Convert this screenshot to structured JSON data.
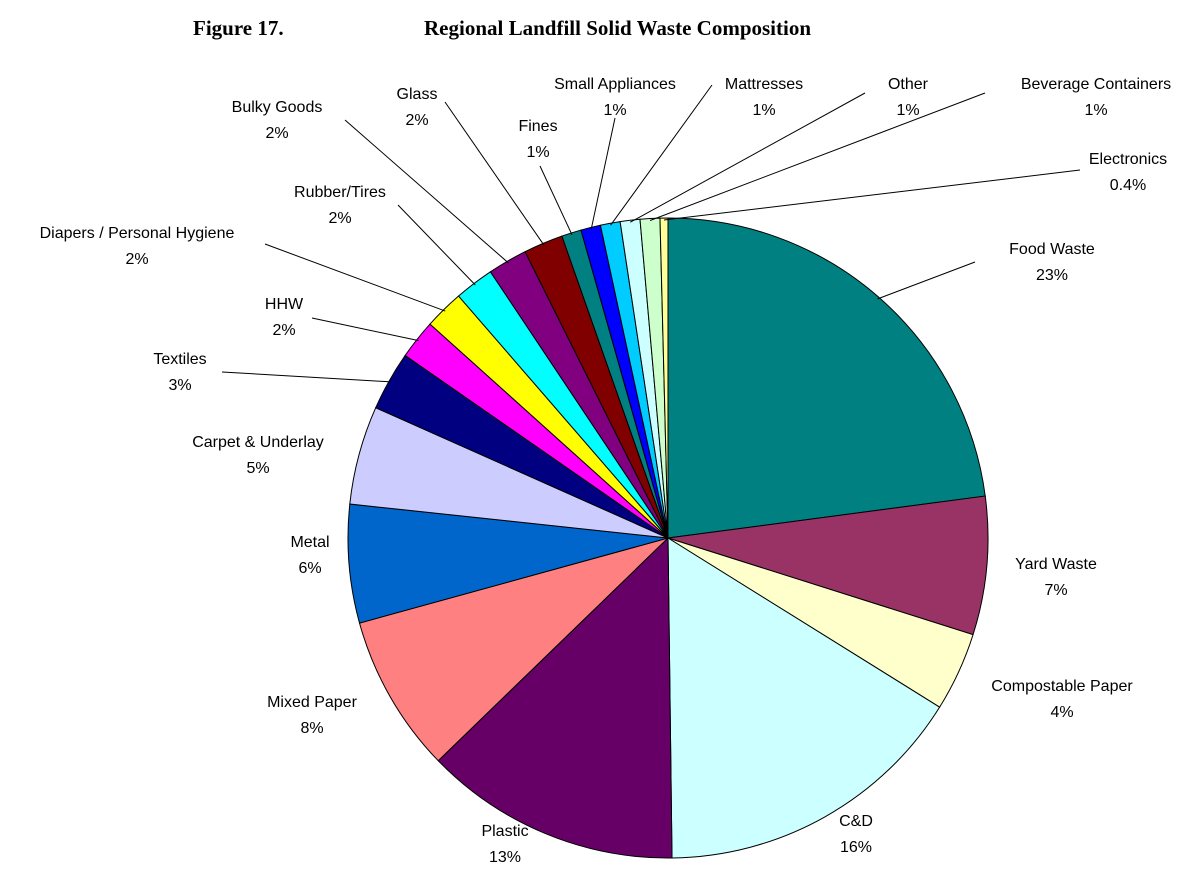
{
  "chart_data": {
    "type": "pie",
    "figure_label": "Figure 17.",
    "title": "Regional Landfill Solid Waste Composition",
    "categories": [
      "Food Waste",
      "Yard Waste",
      "Compostable Paper",
      "C&D",
      "Plastic",
      "Mixed Paper",
      "Metal",
      "Carpet & Underlay",
      "Textiles",
      "HHW",
      "Diapers / Personal Hygiene",
      "Rubber/Tires",
      "Bulky Goods",
      "Glass",
      "Fines",
      "Small Appliances",
      "Mattresses",
      "Other",
      "Beverage Containers",
      "Electronics"
    ],
    "values": [
      23,
      7,
      4,
      16,
      13,
      8,
      6,
      5,
      3,
      2,
      2,
      2,
      2,
      2,
      1,
      1,
      1,
      1,
      1,
      0.4
    ],
    "value_labels": [
      "23%",
      "7%",
      "4%",
      "16%",
      "13%",
      "8%",
      "6%",
      "5%",
      "3%",
      "2%",
      "2%",
      "2%",
      "2%",
      "2%",
      "1%",
      "1%",
      "1%",
      "1%",
      "1%",
      "0.4%"
    ],
    "colors": [
      "#008080",
      "#993366",
      "#ffffcc",
      "#ccffff",
      "#660066",
      "#ff8080",
      "#0066cc",
      "#ccccff",
      "#000080",
      "#ff00ff",
      "#ffff00",
      "#00ffff",
      "#800080",
      "#800000",
      "#008080",
      "#0000ff",
      "#00ccff",
      "#ccffff",
      "#ccffcc",
      "#ffff99"
    ]
  }
}
